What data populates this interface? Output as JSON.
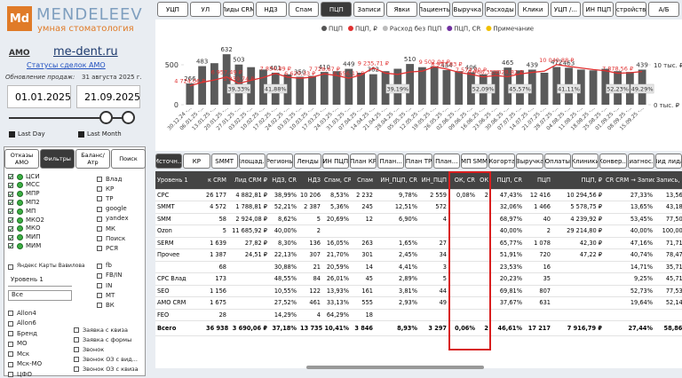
{
  "sidebar": {
    "logo": {
      "mark": "Md",
      "name": "MENDELEEV",
      "tagline": "умная стоматология"
    },
    "amo": "AMO",
    "site": "me-dent.ru",
    "link": "Статусы сделок AMO",
    "update_label": "Обновление продаж:",
    "update_date": "31 августа 2025 г.",
    "date_from": "01.01.2025",
    "date_to": "21.09.2025",
    "last_day": "Last Day",
    "last_month": "Last Month",
    "tabs": [
      "Отказы AMO",
      "Фильтры",
      "Баланс/Атр",
      "Поиск"
    ],
    "active_tab_index": 1,
    "channels": [
      "ЦСИ",
      "МСС",
      "МПР",
      "МП2",
      "МП",
      "МКО2",
      "МКО",
      "МИП",
      "МИМ"
    ],
    "sources": [
      "Влад",
      "КР",
      "ТР",
      "google",
      "yandex",
      "МК",
      "Поиск",
      "РСЯ",
      "fb",
      "FB/IN",
      "IN",
      "МТ",
      "ВК"
    ],
    "yandex": "Яндекс Карты Вавилова",
    "level": "Уровень 1",
    "level_value": "Все",
    "regions": [
      "Allon4",
      "Allon6",
      "Бренд",
      "МО",
      "Мск",
      "Мск-МО",
      "ЦФО"
    ],
    "lead_types": [
      "Заявка с квиза",
      "Заявка с формы",
      "Звонок",
      "Звонок ОЗ с вид...",
      "Звонок ОЗ с квиза"
    ]
  },
  "top_tabs": {
    "items": [
      "УЦП",
      "УЛ",
      "Лиды CRM",
      "НДЗ",
      "Спам",
      "ПЦП",
      "Записи",
      "Явки",
      "Пациенты",
      "Выручка",
      "Расходы",
      "Клики",
      "УЦП /...",
      "ИН ПЦП",
      "Устройства",
      "A/Б"
    ],
    "active_index": 5
  },
  "chart_data": {
    "type": "bar",
    "legend": [
      "ПЦП",
      "ПЦП, ₽",
      "Расход без ПЦП",
      "ПЦП, СR",
      "Примечание"
    ],
    "legend_colors": [
      "#555555",
      "#e03030",
      "#bbbbbb",
      "#7030a0",
      "#f0c000"
    ],
    "categories": [
      "30.12.24 -...",
      "06.01.25 -...",
      "13.01.25 -...",
      "20.01.25 -...",
      "27.01.25 -...",
      "03.02.25 -...",
      "10.02.25 -...",
      "17.02.25 -...",
      "24.02.25 -...",
      "03.03.25 -...",
      "10.03.25 -...",
      "17.03.25 -...",
      "24.03.25 -...",
      "31.03.25 -...",
      "07.04.25 -...",
      "14.04.25 -...",
      "21.04.25 -...",
      "28.04.25 -...",
      "05.05.25 -...",
      "12.05.25 -...",
      "19.05.25 -...",
      "26.05.25 -...",
      "02.06.25 -...",
      "09.06.25 -...",
      "16.06.25 -...",
      "23.06.25 -...",
      "30.06.25 -...",
      "07.07.25 -...",
      "14.07.25 -...",
      "21.07.25 -...",
      "28.07.25 -...",
      "04.08.25 -...",
      "11.08.25 -...",
      "18.08.25 -...",
      "25.08.25 -...",
      "01.09.25 -...",
      "08.09.25 -...",
      "15.09.25 -..."
    ],
    "series": [
      {
        "name": "ПЦП",
        "color": "#5a5a5a",
        "values": [
          266,
          483,
          520,
          632,
          503,
          470,
          440,
          401,
          380,
          350,
          360,
          410,
          420,
          449,
          400,
          382,
          420,
          450,
          510,
          470,
          480,
          434,
          420,
          406,
          380,
          420,
          465,
          430,
          439,
          400,
          472,
          463,
          440,
          430,
          450,
          420,
          410,
          439
        ],
        "value_labels": [
          "266",
          "483",
          null,
          "632",
          "503",
          null,
          null,
          "401",
          null,
          "350",
          null,
          "410",
          null,
          "449",
          null,
          "382",
          null,
          null,
          "510",
          null,
          null,
          "434",
          null,
          "406",
          null,
          null,
          "465",
          null,
          "439",
          null,
          "472",
          "463",
          null,
          null,
          null,
          null,
          null,
          "439"
        ]
      },
      {
        "name": "ПЦП, ₽",
        "color": "#e03030",
        "axis": "y2",
        "values": [
          4.72406,
          5.6,
          6.2,
          6.95749,
          5.33974,
          6.1,
          6.8,
          7.83489,
          6.9,
          6.62033,
          6.9,
          7.72867,
          7.3,
          6.65611,
          7.4,
          9.23571,
          7.9,
          7.6,
          8.2,
          8.4,
          9.50204,
          8.95783,
          8.1,
          7.5749,
          6.96635,
          7.3,
          7.02882,
          7.7,
          8.1,
          8.4,
          10.04088,
          9.6,
          9.2,
          8.8,
          8.5,
          7.87856,
          8.0,
          8.3
        ],
        "value_labels": [
          "4 724,06 ₽",
          null,
          null,
          "6 957,49 ₽",
          "5 339,74 ₽",
          null,
          null,
          "7 834,89 ₽",
          null,
          "6 620,33 ₽",
          null,
          "7 728,67 ₽",
          null,
          "6 656,11 ₽",
          null,
          "9 235,71 ₽",
          null,
          null,
          null,
          null,
          "9 502,04 ₽",
          "8 957,83 ₽",
          null,
          "7 574,90 ₽",
          "6 966,35 ₽",
          null,
          "7 028,82 ₽",
          null,
          null,
          null,
          "10 040,88 ₽",
          null,
          null,
          null,
          null,
          "7 878,56 ₽",
          null,
          null
        ]
      },
      {
        "name": "ПЦП, СR",
        "color": "#7030a0",
        "values": [
          null,
          null,
          null,
          null,
          39.33,
          null,
          null,
          41.88,
          null,
          null,
          null,
          null,
          null,
          null,
          null,
          null,
          null,
          39.19,
          null,
          null,
          null,
          null,
          null,
          null,
          52.09,
          null,
          null,
          45.57,
          null,
          null,
          null,
          41.11,
          null,
          null,
          null,
          52.23,
          null,
          49.29
        ],
        "value_labels": [
          null,
          null,
          null,
          null,
          "39,33%",
          null,
          null,
          "41,88%",
          null,
          null,
          null,
          null,
          null,
          null,
          null,
          null,
          null,
          "39,19%",
          null,
          null,
          null,
          null,
          null,
          null,
          "52,09%",
          null,
          null,
          "45,57%",
          null,
          null,
          null,
          "41,11%",
          null,
          null,
          null,
          "52,23%",
          null,
          "49,29%"
        ]
      }
    ],
    "ylim": [
      0,
      800
    ],
    "yticks": [
      0,
      500
    ],
    "y2lim": [
      0,
      16
    ],
    "y2ticks": [
      {
        "value": 0,
        "label": "0 тыс. ₽"
      },
      {
        "value": 10,
        "label": "10 тыс. ₽"
      }
    ]
  },
  "table_tabs": {
    "items": [
      "Источн...",
      "КР",
      "SMMT",
      "Площад...",
      "Регионы",
      "Ленды",
      "ИН ПЦП",
      "План КР",
      "План...",
      "План ТР",
      "План...",
      "МП SMM",
      "Когорта",
      "Выручка",
      "Оплаты",
      "Клиники",
      "Конвер...",
      "Диагнос...",
      "Вид лида"
    ],
    "active_index": 0
  },
  "table": {
    "columns": [
      "Уровень 1",
      "к CRM",
      "Лид CRM ₽",
      "НДЗ, CR",
      "НДЗ",
      "Спам, CR",
      "Спам",
      "ИН_ПЦП, CR",
      "ИН_ПЦП",
      "ОК, CR",
      "ОК",
      "ПЦП, CR",
      "ПЦП",
      "ПЦП, ₽",
      "CR CRM → Запись",
      "Запись, CR"
    ],
    "rows": [
      [
        "CPC",
        "26 177",
        "4 882,81 ₽",
        "38,99%",
        "10 206",
        "8,53%",
        "2 232",
        "9,78%",
        "2 559",
        "0,08%",
        "2",
        "47,43%",
        "12 416",
        "10 294,56 ₽",
        "27,33%",
        "13,56%"
      ],
      [
        "SMMT",
        "4 572",
        "1 788,81 ₽",
        "52,21%",
        "2 387",
        "5,36%",
        "245",
        "12,51%",
        "572",
        null,
        null,
        "32,06%",
        "1 466",
        "5 578,75 ₽",
        "13,65%",
        "43,18%"
      ],
      [
        "SMM",
        "58",
        "2 924,08 ₽",
        "8,62%",
        "5",
        "20,69%",
        "12",
        "6,90%",
        "4",
        null,
        null,
        "68,97%",
        "40",
        "4 239,92 ₽",
        "53,45%",
        "77,50%"
      ],
      [
        "Ozon",
        "5",
        "11 685,92 ₽",
        "40,00%",
        "2",
        null,
        null,
        null,
        null,
        null,
        null,
        "40,00%",
        "2",
        "29 214,80 ₽",
        "40,00%",
        "100,00%"
      ],
      [
        "SERM",
        "1 639",
        "27,82 ₽",
        "8,30%",
        "136",
        "16,05%",
        "263",
        "1,65%",
        "27",
        null,
        null,
        "65,77%",
        "1 078",
        "42,30 ₽",
        "47,16%",
        "71,71%"
      ],
      [
        "Прочее",
        "1 387",
        "24,51 ₽",
        "22,13%",
        "307",
        "21,70%",
        "301",
        "2,45%",
        "34",
        null,
        null,
        "51,91%",
        "720",
        "47,22 ₽",
        "40,74%",
        "78,47%"
      ],
      [
        null,
        "68",
        null,
        "30,88%",
        "21",
        "20,59%",
        "14",
        "4,41%",
        "3",
        null,
        null,
        "23,53%",
        "16",
        null,
        "14,71%",
        "35,71%"
      ],
      [
        "CPC Влад",
        "173",
        null,
        "48,55%",
        "84",
        "26,01%",
        "45",
        "2,89%",
        "5",
        null,
        null,
        "20,23%",
        "35",
        null,
        "9,25%",
        "45,71%"
      ],
      [
        "SEO",
        "1 156",
        null,
        "10,55%",
        "122",
        "13,93%",
        "161",
        "3,81%",
        "44",
        null,
        null,
        "69,81%",
        "807",
        null,
        "52,73%",
        "77,53%"
      ],
      [
        "AMO CRM",
        "1 675",
        null,
        "27,52%",
        "461",
        "33,13%",
        "555",
        "2,93%",
        "49",
        null,
        null,
        "37,67%",
        "631",
        null,
        "19,64%",
        "52,14%"
      ],
      [
        "FEO",
        "28",
        null,
        "14,29%",
        "4",
        "64,29%",
        "18",
        null,
        null,
        null,
        null,
        null,
        null,
        null,
        null,
        null
      ]
    ],
    "total": [
      "Всего",
      "36 938",
      "3 690,06 ₽",
      "37,18%",
      "13 735",
      "10,41%",
      "3 846",
      "8,93%",
      "3 297",
      "0,06%",
      "2",
      "46,61%",
      "17 217",
      "7 916,79 ₽",
      "27,44%",
      "58,86%"
    ]
  }
}
